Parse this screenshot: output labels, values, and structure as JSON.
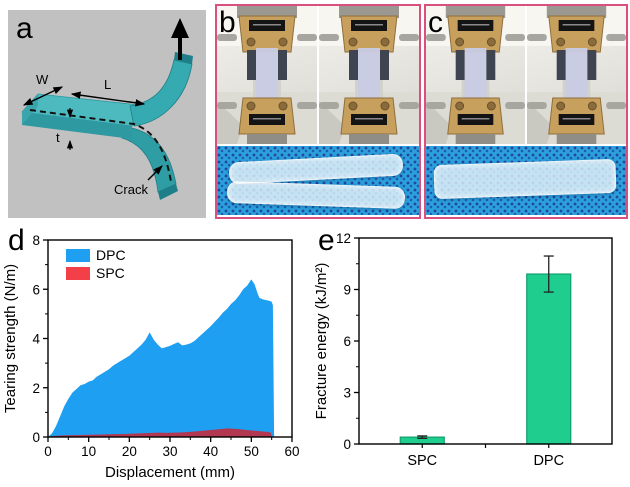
{
  "panels": {
    "a": {
      "label": "a",
      "annotations": {
        "width": "W",
        "length": "L",
        "thickness": "t",
        "crack": "Crack"
      },
      "colors": {
        "background": "#c1c1c1",
        "specimen_top": "#4dbac0",
        "specimen_front": "#2e99a1",
        "specimen_leg": "#35abb1",
        "specimen_dark": "#1f7f88"
      }
    },
    "b": {
      "label": "b"
    },
    "c": {
      "label": "c"
    },
    "d": {
      "label": "d"
    },
    "e": {
      "label": "e"
    }
  },
  "colors": {
    "photo_border_pink": "#d94f7e",
    "fabric_blue": "#2ba0db",
    "fabric_dot": "#23469e",
    "dpc_blue": "#1e9ff2",
    "spc_red_legend": "#f23f48",
    "spc_area_crimson": "#b23750",
    "bar_green": "#1fce8f",
    "bar_green_edge": "#0fa06c"
  },
  "chart_data": [
    {
      "type": "area",
      "xlabel": "Displacement (mm)",
      "ylabel": "Tearing strength (N/m)",
      "xlim": [
        0,
        60
      ],
      "ylim": [
        0,
        8
      ],
      "xticks": [
        0,
        10,
        20,
        30,
        40,
        50,
        60
      ],
      "yticks": [
        0,
        2,
        4,
        6,
        8
      ],
      "xminor": [
        5,
        15,
        25,
        35,
        45,
        55
      ],
      "yminor": [
        1,
        3,
        5,
        7
      ],
      "grid": false,
      "legend_position": "top-left",
      "series": [
        {
          "name": "DPC",
          "color": "#1e9ff2",
          "area_color": "#1e9ff2",
          "points": [
            [
              0,
              0
            ],
            [
              1,
              0.15
            ],
            [
              2,
              0.45
            ],
            [
              3,
              0.85
            ],
            [
              4,
              1.25
            ],
            [
              5,
              1.55
            ],
            [
              6,
              1.8
            ],
            [
              7,
              1.95
            ],
            [
              8,
              2.1
            ],
            [
              9,
              2.15
            ],
            [
              10,
              2.25
            ],
            [
              11,
              2.3
            ],
            [
              12,
              2.45
            ],
            [
              13,
              2.55
            ],
            [
              14,
              2.65
            ],
            [
              15,
              2.75
            ],
            [
              16,
              2.9
            ],
            [
              17,
              3.0
            ],
            [
              18,
              3.1
            ],
            [
              19,
              3.2
            ],
            [
              20,
              3.3
            ],
            [
              21,
              3.45
            ],
            [
              22,
              3.6
            ],
            [
              23,
              3.75
            ],
            [
              24,
              3.95
            ],
            [
              25,
              4.25
            ],
            [
              25.5,
              4.1
            ],
            [
              26,
              3.95
            ],
            [
              27,
              3.75
            ],
            [
              28,
              3.6
            ],
            [
              29,
              3.65
            ],
            [
              30,
              3.7
            ],
            [
              31,
              3.78
            ],
            [
              32,
              3.85
            ],
            [
              33,
              3.72
            ],
            [
              34,
              3.75
            ],
            [
              35,
              3.8
            ],
            [
              36,
              3.9
            ],
            [
              37,
              4.05
            ],
            [
              38,
              4.2
            ],
            [
              39,
              4.35
            ],
            [
              40,
              4.5
            ],
            [
              41,
              4.68
            ],
            [
              42,
              4.85
            ],
            [
              43,
              5.05
            ],
            [
              44,
              5.2
            ],
            [
              45,
              5.4
            ],
            [
              46,
              5.55
            ],
            [
              47,
              5.75
            ],
            [
              48,
              6.0
            ],
            [
              49,
              6.15
            ],
            [
              50,
              6.4
            ],
            [
              50.8,
              6.2
            ],
            [
              51.5,
              5.85
            ],
            [
              52,
              5.65
            ],
            [
              53,
              5.58
            ],
            [
              54,
              5.55
            ],
            [
              55,
              5.5
            ],
            [
              55.3,
              5.35
            ],
            [
              55.6,
              0
            ]
          ]
        },
        {
          "name": "SPC",
          "color": "#f23f48",
          "area_color": "#b23750",
          "points": [
            [
              0,
              0
            ],
            [
              1,
              0.04
            ],
            [
              3,
              0.06
            ],
            [
              5,
              0.07
            ],
            [
              8,
              0.08
            ],
            [
              10,
              0.09
            ],
            [
              13,
              0.1
            ],
            [
              15,
              0.11
            ],
            [
              18,
              0.12
            ],
            [
              20,
              0.13
            ],
            [
              23,
              0.15
            ],
            [
              25,
              0.16
            ],
            [
              27,
              0.18
            ],
            [
              29,
              0.17
            ],
            [
              31,
              0.18
            ],
            [
              33,
              0.19
            ],
            [
              35,
              0.21
            ],
            [
              37,
              0.24
            ],
            [
              39,
              0.27
            ],
            [
              41,
              0.3
            ],
            [
              43,
              0.33
            ],
            [
              44,
              0.35
            ],
            [
              45,
              0.34
            ],
            [
              46,
              0.33
            ],
            [
              47,
              0.32
            ],
            [
              48,
              0.3
            ],
            [
              49,
              0.28
            ],
            [
              50,
              0.27
            ],
            [
              51,
              0.25
            ],
            [
              52,
              0.24
            ],
            [
              53,
              0.22
            ],
            [
              54,
              0.21
            ],
            [
              54.8,
              0.18
            ],
            [
              55,
              0
            ]
          ]
        }
      ]
    },
    {
      "type": "bar",
      "categories": [
        "SPC",
        "DPC"
      ],
      "values": [
        0.4,
        9.9
      ],
      "errors": [
        0.07,
        1.05
      ],
      "ylabel": "Fracture energy (kJ/m²)",
      "xlabel": "",
      "ylim": [
        0,
        12
      ],
      "yticks": [
        0,
        3,
        6,
        9,
        12
      ],
      "yminor": [
        1.5,
        4.5,
        7.5,
        10.5
      ],
      "grid": false,
      "bar_color": "#1fce8f",
      "bar_edge": "#0fa06c"
    }
  ]
}
